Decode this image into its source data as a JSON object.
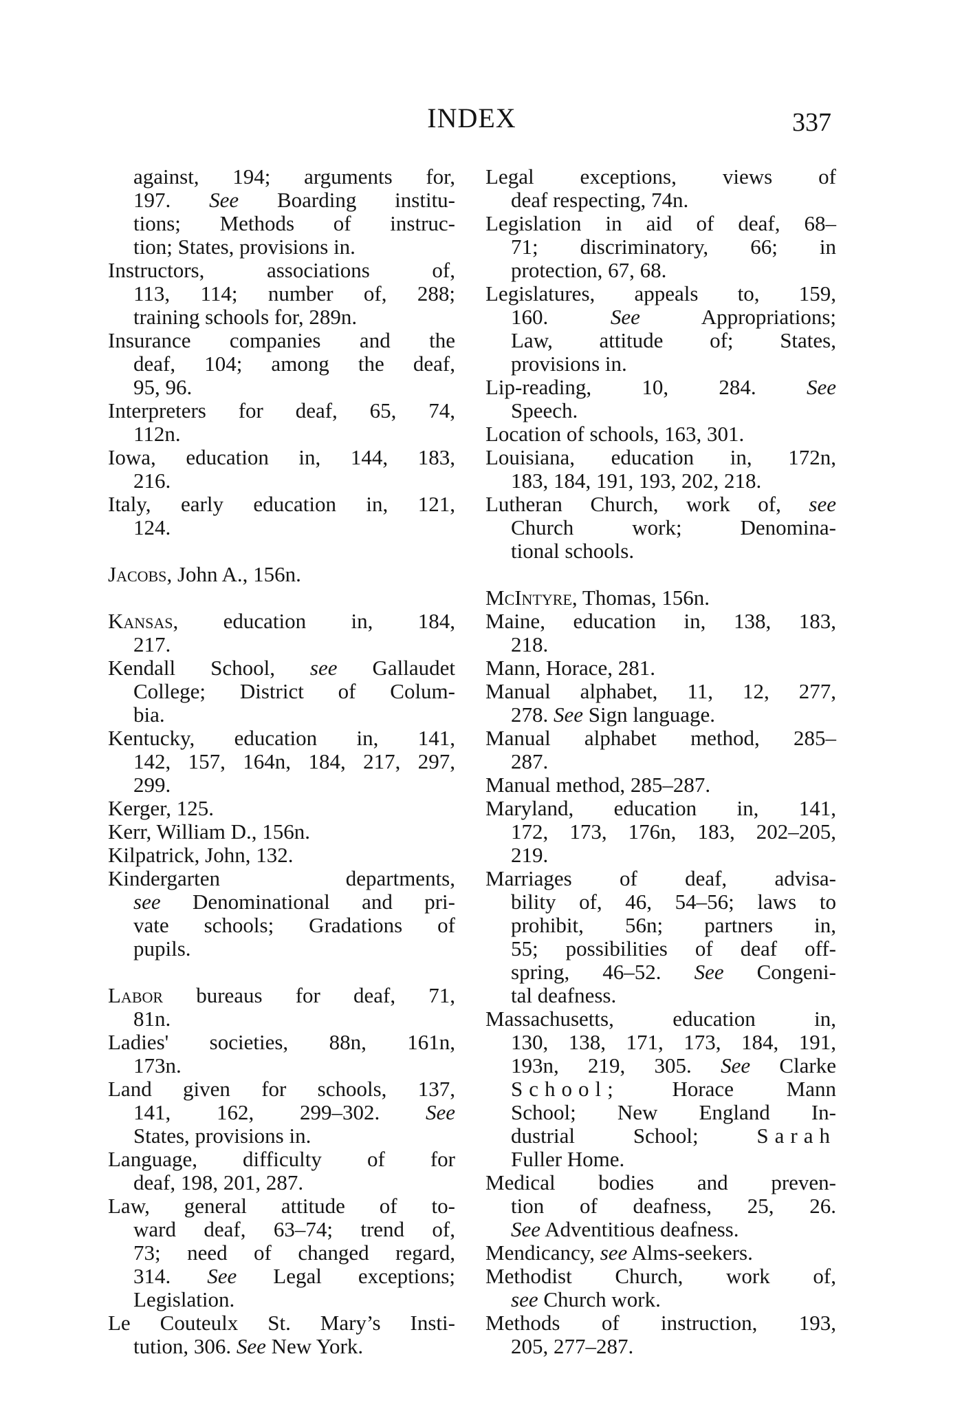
{
  "header": {
    "title": "INDEX",
    "page_number": "337"
  },
  "columns": [
    {
      "groups": [
        {
          "entries": [
            {
              "continued": true,
              "lines": [
                [
                  "against, 194; arguments for,"
                ],
                [
                  "197.  ",
                  {
                    "i": "See"
                  },
                  " Boarding institu-"
                ],
                [
                  "tions; Methods of instruc-"
                ],
                [
                  "tion; States, provisions in."
                ]
              ]
            },
            {
              "lines": [
                [
                  "Instructors, associations of,"
                ],
                [
                  "113, 114; number of, 288;"
                ],
                [
                  "training schools for, 289n."
                ]
              ]
            },
            {
              "lines": [
                [
                  "Insurance companies and the"
                ],
                [
                  "deaf, 104; among the deaf,"
                ],
                [
                  "95, 96."
                ]
              ]
            },
            {
              "lines": [
                [
                  "Interpreters for deaf, 65, 74,"
                ],
                [
                  "112n."
                ]
              ]
            },
            {
              "lines": [
                [
                  "Iowa, education in, 144, 183,"
                ],
                [
                  "216."
                ]
              ]
            },
            {
              "lines": [
                [
                  "Italy, early education in, 121,"
                ],
                [
                  "124."
                ]
              ]
            }
          ]
        },
        {
          "entries": [
            {
              "lines": [
                [
                  {
                    "sc": "Jacobs"
                  },
                  ", John A., 156n."
                ]
              ]
            }
          ]
        },
        {
          "entries": [
            {
              "lines": [
                [
                  {
                    "sc": "Kansas"
                  },
                  ", education in, 184,"
                ],
                [
                  "217."
                ]
              ]
            },
            {
              "lines": [
                [
                  "Kendall School, ",
                  {
                    "i": "see"
                  },
                  " Gallaudet"
                ],
                [
                  "College; District of Colum-"
                ],
                [
                  "bia."
                ]
              ]
            },
            {
              "lines": [
                [
                  "Kentucky, education in, 141,"
                ],
                [
                  "142, 157, 164n, 184, 217, 297,"
                ],
                [
                  "299."
                ]
              ]
            },
            {
              "lines": [
                [
                  "Kerger, 125."
                ]
              ]
            },
            {
              "lines": [
                [
                  "Kerr, William D., 156n."
                ]
              ]
            },
            {
              "lines": [
                [
                  "Kilpatrick, John, 132."
                ]
              ]
            },
            {
              "lines": [
                [
                  "Kindergarten departments,"
                ],
                [
                  {
                    "i": "see"
                  },
                  " Denominational and pri-"
                ],
                [
                  "vate schools; Gradations of"
                ],
                [
                  "pupils."
                ]
              ]
            }
          ]
        },
        {
          "entries": [
            {
              "lines": [
                [
                  {
                    "sc": "Labor"
                  },
                  " bureaus for deaf, 71,"
                ],
                [
                  "81n."
                ]
              ]
            },
            {
              "lines": [
                [
                  "Ladies' societies, 88n, 161n,"
                ],
                [
                  "173n."
                ]
              ]
            },
            {
              "lines": [
                [
                  "Land given for schools, 137,"
                ],
                [
                  "141, 162, 299–302.  ",
                  {
                    "i": "See"
                  }
                ],
                [
                  "States, provisions in."
                ]
              ]
            },
            {
              "lines": [
                [
                  "Language, difficulty of for"
                ],
                [
                  "deaf, 198, 201, 287."
                ]
              ]
            },
            {
              "lines": [
                [
                  "Law, general attitude of to-"
                ],
                [
                  "ward deaf, 63–74; trend of,"
                ],
                [
                  "73; need of changed regard,"
                ],
                [
                  "314.  ",
                  {
                    "i": "See"
                  },
                  " Legal exceptions;"
                ],
                [
                  "Legislation."
                ]
              ]
            },
            {
              "lines": [
                [
                  "Le Couteulx St. Mary’s Insti-"
                ],
                [
                  "tution, 306.  ",
                  {
                    "i": "See"
                  },
                  " New York."
                ]
              ]
            }
          ]
        }
      ]
    },
    {
      "groups": [
        {
          "entries": [
            {
              "lines": [
                [
                  "Legal exceptions, views of"
                ],
                [
                  "deaf respecting, 74n."
                ]
              ]
            },
            {
              "lines": [
                [
                  "Legislation in aid of deaf, 68–"
                ],
                [
                  "71; discriminatory, 66; in"
                ],
                [
                  "protection, 67, 68."
                ]
              ]
            },
            {
              "lines": [
                [
                  "Legislatures, appeals to, 159,"
                ],
                [
                  "160.  ",
                  {
                    "i": "See"
                  },
                  " Appropriations;"
                ],
                [
                  "Law, attitude of; States,"
                ],
                [
                  "provisions in."
                ]
              ]
            },
            {
              "lines": [
                [
                  "Lip-reading, 10, 284.  ",
                  {
                    "i": "See"
                  }
                ],
                [
                  "Speech."
                ]
              ]
            },
            {
              "lines": [
                [
                  "Location of schools, 163, 301."
                ]
              ]
            },
            {
              "lines": [
                [
                  "Louisiana, education in, 172n,"
                ],
                [
                  "183, 184, 191, 193, 202, 218."
                ]
              ]
            },
            {
              "lines": [
                [
                  "Lutheran Church, work of, ",
                  {
                    "i": "see"
                  }
                ],
                [
                  "Church work; Denomina-"
                ],
                [
                  "tional schools."
                ]
              ]
            }
          ]
        },
        {
          "entries": [
            {
              "lines": [
                [
                  {
                    "sc": "McIntyre"
                  },
                  ", Thomas, 156n."
                ]
              ]
            },
            {
              "lines": [
                [
                  "Maine, education in, 138, 183,"
                ],
                [
                  "218."
                ]
              ]
            },
            {
              "lines": [
                [
                  "Mann, Horace, 281."
                ]
              ]
            },
            {
              "lines": [
                [
                  "Manual alphabet, 11, 12, 277,"
                ],
                [
                  "278.  ",
                  {
                    "i": "See"
                  },
                  " Sign language."
                ]
              ]
            },
            {
              "lines": [
                [
                  "Manual alphabet method, 285–"
                ],
                [
                  "287."
                ]
              ]
            },
            {
              "lines": [
                [
                  "Manual method, 285–287."
                ]
              ]
            },
            {
              "lines": [
                [
                  "Maryland, education in, 141,"
                ],
                [
                  "172, 173, 176n, 183, 202–205,"
                ],
                [
                  "219."
                ]
              ]
            },
            {
              "lines": [
                [
                  "Marriages of deaf, advisa-"
                ],
                [
                  "bility of, 46, 54–56; laws to"
                ],
                [
                  "prohibit, 56n; partners in,"
                ],
                [
                  "55; possibilities of deaf off-"
                ],
                [
                  "spring, 46–52.  ",
                  {
                    "i": "See"
                  },
                  " Congeni-"
                ],
                [
                  "tal deafness."
                ]
              ]
            },
            {
              "lines": [
                [
                  "Massachusetts, education in,"
                ],
                [
                  "130, 138, 171, 173, 184, 191,"
                ],
                [
                  "193n, 219, 305.  ",
                  {
                    "i": "See"
                  },
                  " Clarke"
                ],
                [
                  {
                    "ls": "School;"
                  },
                  " Horace Mann"
                ],
                [
                  "School; New England In-"
                ],
                [
                  "dustrial School; ",
                  {
                    "ls": "Sarah"
                  }
                ],
                [
                  "Fuller Home."
                ]
              ]
            },
            {
              "lines": [
                [
                  "Medical bodies and preven-"
                ],
                [
                  "tion of deafness, 25, 26."
                ],
                [
                  {
                    "i": "See"
                  },
                  " Adventitious deafness."
                ]
              ]
            },
            {
              "lines": [
                [
                  "Mendicancy, ",
                  {
                    "i": "see"
                  },
                  " Alms-seekers."
                ]
              ]
            },
            {
              "lines": [
                [
                  "Methodist Church, work of,"
                ],
                [
                  {
                    "i": "see"
                  },
                  " Church work."
                ]
              ]
            },
            {
              "lines": [
                [
                  "Methods of instruction, 193,"
                ],
                [
                  "205, 277–287."
                ]
              ]
            }
          ]
        }
      ]
    }
  ]
}
